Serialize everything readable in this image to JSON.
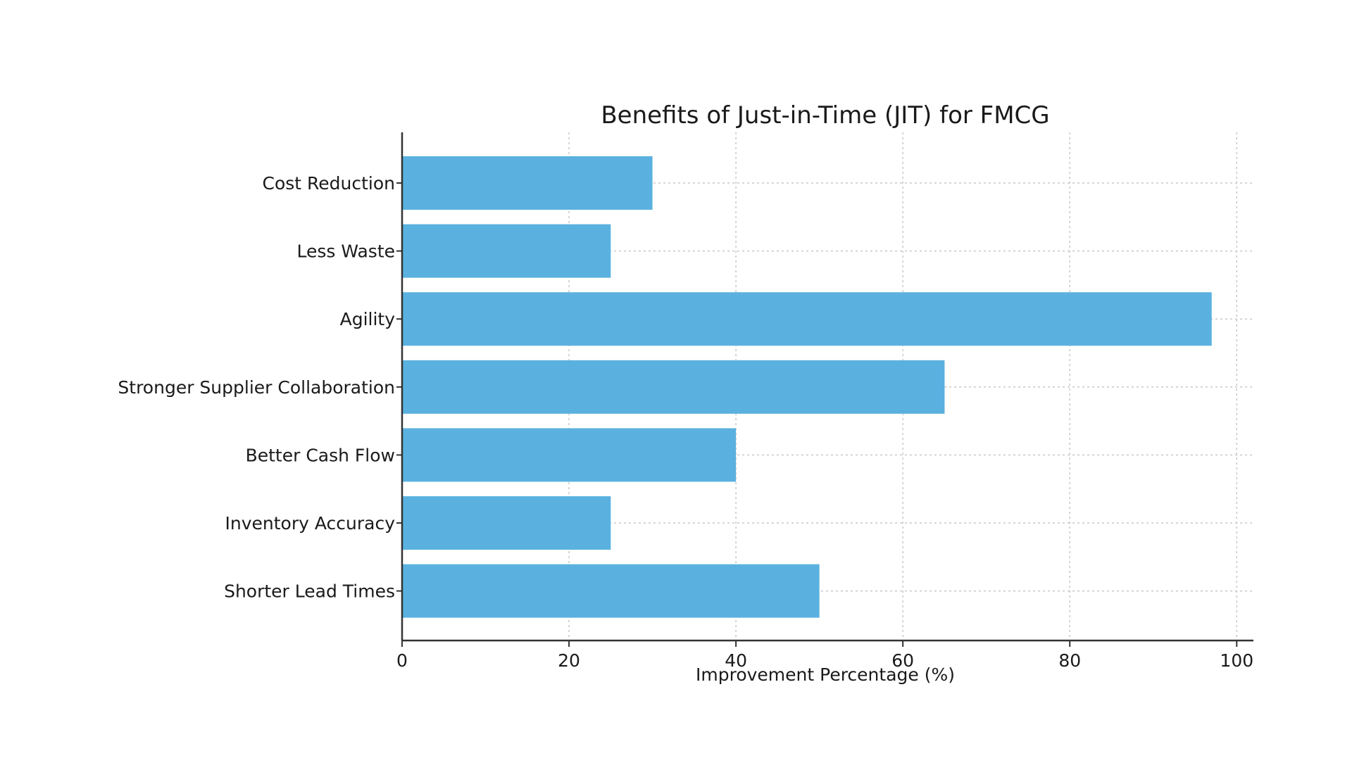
{
  "chart_data": {
    "type": "bar",
    "orientation": "horizontal",
    "title": "Benefits of Just-in-Time (JIT) for FMCG",
    "xlabel": "Improvement Percentage (%)",
    "ylabel": "",
    "categories": [
      "Cost Reduction",
      "Less Waste",
      "Agility",
      "Stronger Supplier Collaboration",
      "Better Cash Flow",
      "Inventory Accuracy",
      "Shorter Lead Times"
    ],
    "values": [
      30,
      25,
      97,
      65,
      40,
      25,
      50
    ],
    "xlim": [
      0,
      102
    ],
    "xticks": [
      0,
      20,
      40,
      60,
      80,
      100
    ],
    "grid": true,
    "legend": "none",
    "bar_color": "#5ab1df"
  }
}
